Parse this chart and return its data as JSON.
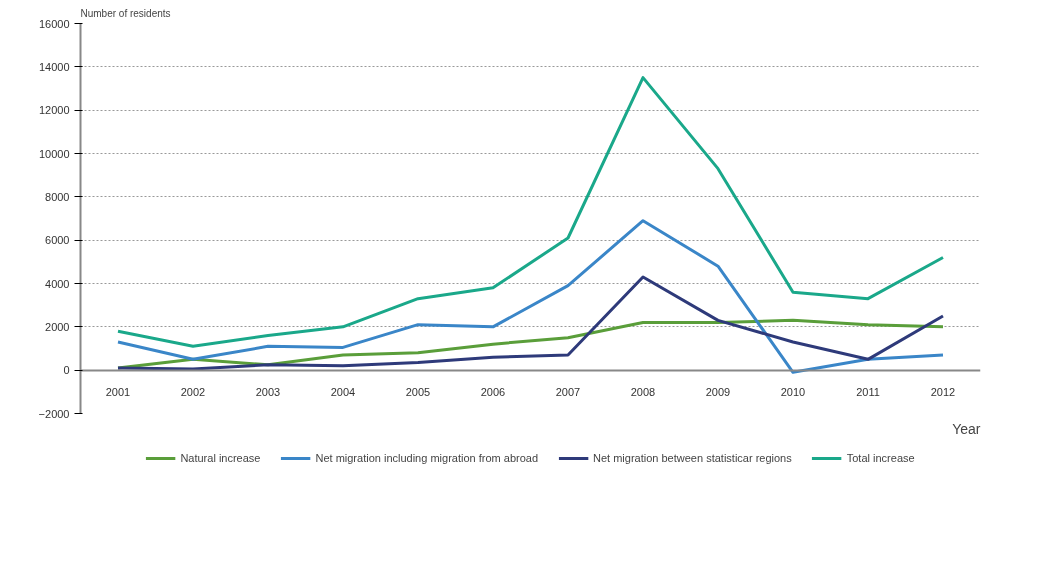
{
  "chart_data": {
    "type": "line",
    "ylabel": "Number of residents",
    "xlabel": "Year",
    "categories": [
      "2001",
      "2002",
      "2003",
      "2004",
      "2005",
      "2006",
      "2007",
      "2008",
      "2009",
      "2010",
      "2011",
      "2012"
    ],
    "series": [
      {
        "name": "Natural increase",
        "color": "#5a9e3a",
        "values": [
          100,
          500,
          250,
          700,
          800,
          1200,
          1500,
          2200,
          2200,
          2300,
          2100,
          2000
        ]
      },
      {
        "name": "Net migration including migration from abroad",
        "color": "#3a86c8",
        "values": [
          1300,
          500,
          1100,
          1050,
          2100,
          2000,
          3900,
          6900,
          4800,
          -100,
          500,
          700
        ]
      },
      {
        "name": "Net migration between statisticar regions",
        "color": "#2e3a7a",
        "values": [
          100,
          50,
          250,
          200,
          350,
          600,
          700,
          4300,
          2300,
          1300,
          500,
          2500
        ]
      },
      {
        "name": "Total increase",
        "color": "#1aa88a",
        "values": [
          1800,
          1100,
          1600,
          2000,
          3300,
          3800,
          6100,
          13500,
          9300,
          3600,
          3300,
          5200
        ]
      }
    ],
    "ylim": [
      -2000,
      16000
    ],
    "yticks": [
      -2000,
      0,
      2000,
      4000,
      6000,
      8000,
      10000,
      12000,
      14000,
      16000
    ],
    "grid": "y",
    "legend": "bottom",
    "marker": "none",
    "line_style": "solid"
  }
}
